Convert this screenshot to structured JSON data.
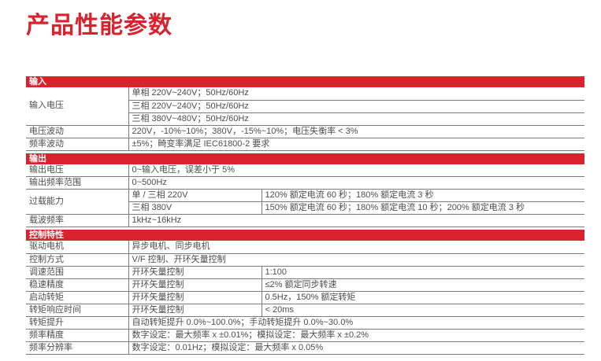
{
  "page": {
    "title": "产品性能参数"
  },
  "colors": {
    "accent_red": "#d8232f",
    "border_gray": "#7d7d7d",
    "text_gray": "#4d4d4d"
  },
  "specs": {
    "sections": [
      {
        "title": "输入",
        "rows": [
          {
            "label": "输入电压",
            "values": [
              "单相 220V~240V；50Hz/60Hz",
              "三相 220V~240V；50Hz/60Hz",
              "三相 380V~480V；50Hz/60Hz"
            ]
          },
          {
            "label": "电压波动",
            "values": [
              "220V，-10%~10%；380V，-15%~10%；电压失衡率 < 3%"
            ]
          },
          {
            "label": "频率波动",
            "values": [
              "±5%；畸变率满足 IEC61800-2 要求"
            ]
          }
        ]
      },
      {
        "title": "输出",
        "rows": [
          {
            "label": "输出电压",
            "values": [
              "0~输入电压，误差小于 5%"
            ]
          },
          {
            "label": "输出频率范围",
            "values": [
              "0~500Hz"
            ]
          },
          {
            "label": "过载能力",
            "pairs": [
              {
                "left": "单 / 三相 220V",
                "right": "120% 额定电流 60 秒；180% 额定电流 3 秒"
              },
              {
                "left": "三相 380V",
                "right": "150% 额定电流 60 秒；180% 额定电流 10 秒；200% 额定电流 3 秒"
              }
            ]
          },
          {
            "label": "载波频率",
            "values": [
              "1kHz~16kHz"
            ]
          }
        ]
      },
      {
        "title": "控制特性",
        "rows": [
          {
            "label": "驱动电机",
            "values": [
              "异步电机、同步电机"
            ]
          },
          {
            "label": "控制方式",
            "values": [
              "V/F 控制、开环矢量控制"
            ]
          },
          {
            "label": "调速范围",
            "pairs": [
              {
                "left": "开环矢量控制",
                "right": "1:100"
              }
            ]
          },
          {
            "label": "稳速精度",
            "pairs": [
              {
                "left": "开环矢量控制",
                "right": "≤2% 额定同步转速"
              }
            ]
          },
          {
            "label": "启动转矩",
            "pairs": [
              {
                "left": "开环矢量控制",
                "right": "0.5Hz，150% 额定转矩"
              }
            ]
          },
          {
            "label": "转矩响应时间",
            "pairs": [
              {
                "left": "开环矢量控制",
                "right": "< 20ms"
              }
            ]
          },
          {
            "label": "转矩提升",
            "values": [
              "自动转矩提升 0.0%~100.0%；手动转矩提升 0.0%~30.0%"
            ]
          },
          {
            "label": "频率精度",
            "values": [
              "数字设定：最大频率 x ±0.01%；模拟设定：最大频率 x ±0.2%"
            ]
          },
          {
            "label": "频率分辨率",
            "values": [
              "数字设定：0.01Hz；模拟设定：最大频率 x 0.05%"
            ]
          }
        ]
      }
    ]
  }
}
